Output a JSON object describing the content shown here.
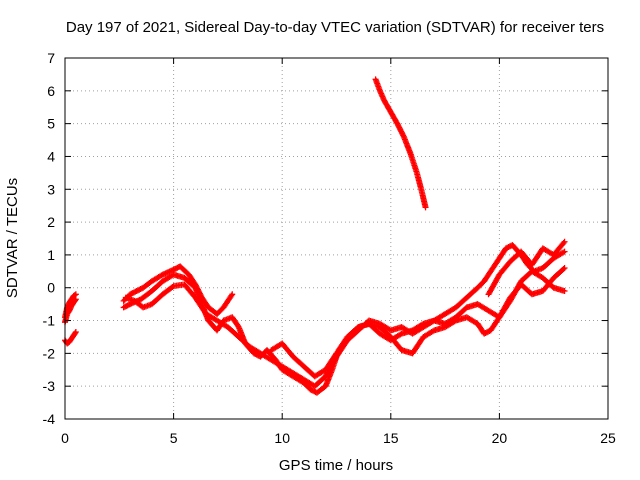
{
  "chart_data": {
    "type": "scatter",
    "title": "Day 197 of 2021, Sidereal Day-to-day VTEC variation (SDTVAR) for receiver ters",
    "xlabel": "GPS time / hours",
    "ylabel": "SDTVAR / TECUs",
    "xlim": [
      0,
      25
    ],
    "ylim": [
      -4,
      7
    ],
    "xticks": [
      "0",
      "5",
      "10",
      "15",
      "20",
      "25"
    ],
    "yticks": [
      "-4",
      "-3",
      "-2",
      "-1",
      "0",
      "1",
      "2",
      "3",
      "4",
      "5",
      "6",
      "7"
    ],
    "grid": true,
    "marker": "+",
    "color": "#ff0000",
    "series": [
      {
        "x": [
          0.0,
          0.1,
          0.2,
          0.3,
          0.4,
          0.5
        ],
        "y": [
          -0.9,
          -0.6,
          -0.45,
          -0.35,
          -0.25,
          -0.2
        ]
      },
      {
        "x": [
          0.0,
          0.1,
          0.2,
          0.3,
          0.4,
          0.5
        ],
        "y": [
          -1.05,
          -0.8,
          -0.7,
          -0.55,
          -0.45,
          -0.35
        ]
      },
      {
        "x": [
          0.0,
          0.1,
          0.2,
          0.3,
          0.4,
          0.5
        ],
        "y": [
          -1.6,
          -1.7,
          -1.65,
          -1.55,
          -1.45,
          -1.35
        ]
      },
      {
        "x": [
          2.7,
          3.0,
          3.3,
          3.6,
          4.0,
          4.5,
          5.0,
          5.3,
          5.7,
          6.0,
          6.3,
          6.6,
          7.0,
          7.3,
          7.7
        ],
        "y": [
          -0.4,
          -0.2,
          -0.1,
          0.0,
          0.2,
          0.4,
          0.55,
          0.65,
          0.4,
          0.1,
          -0.3,
          -0.6,
          -0.8,
          -0.6,
          -0.2
        ]
      },
      {
        "x": [
          2.7,
          3.0,
          3.5,
          4.0,
          4.5,
          5.0,
          5.5,
          6.0,
          6.3,
          6.6,
          7.0,
          7.3,
          7.7,
          8.0,
          8.3,
          8.7,
          9.0,
          9.3,
          9.7,
          10.0,
          10.5,
          11.0,
          11.3,
          11.6,
          12.0,
          12.3,
          12.6,
          13.0,
          13.5,
          14.0,
          14.5,
          15.0,
          15.5,
          16.0,
          16.5,
          17.0,
          17.5,
          18.0,
          18.5,
          19.0,
          19.3,
          19.6,
          20.0,
          20.3,
          20.6,
          21.0,
          21.3,
          21.6,
          22.0,
          22.5,
          23.0
        ],
        "y": [
          -0.6,
          -0.5,
          -0.35,
          -0.1,
          0.2,
          0.4,
          0.3,
          0.0,
          -0.5,
          -1.0,
          -1.3,
          -1.0,
          -0.9,
          -1.2,
          -1.7,
          -2.0,
          -2.1,
          -1.9,
          -2.2,
          -2.5,
          -2.7,
          -2.9,
          -3.1,
          -3.2,
          -3.0,
          -2.5,
          -1.9,
          -1.5,
          -1.2,
          -1.1,
          -1.4,
          -1.6,
          -1.4,
          -1.3,
          -1.1,
          -1.0,
          -0.8,
          -0.6,
          -0.3,
          0.0,
          0.2,
          0.5,
          0.9,
          1.2,
          1.3,
          1.0,
          0.7,
          0.5,
          0.6,
          0.9,
          1.1
        ]
      },
      {
        "x": [
          2.8,
          3.2,
          3.6,
          4.0,
          4.5,
          5.0,
          5.5,
          6.0,
          6.5,
          7.0,
          7.5,
          8.0,
          8.5,
          9.0,
          9.5,
          10.0,
          10.5,
          11.0,
          11.5,
          12.0,
          12.5,
          13.0,
          13.5,
          14.0,
          14.5,
          15.0,
          15.5,
          16.0,
          16.5,
          17.0,
          17.5,
          18.0,
          18.5,
          19.0,
          19.5,
          20.0,
          20.5,
          21.0,
          21.5,
          22.0,
          22.5,
          23.0
        ],
        "y": [
          -0.3,
          -0.4,
          -0.6,
          -0.5,
          -0.2,
          0.05,
          0.1,
          -0.3,
          -0.8,
          -1.0,
          -1.2,
          -1.5,
          -1.8,
          -2.0,
          -2.2,
          -2.4,
          -2.6,
          -2.8,
          -3.0,
          -2.7,
          -2.1,
          -1.6,
          -1.3,
          -1.0,
          -1.1,
          -1.3,
          -1.2,
          -1.4,
          -1.2,
          -1.0,
          -1.1,
          -0.9,
          -0.6,
          -0.5,
          -0.7,
          -0.9,
          -0.4,
          0.2,
          0.5,
          0.3,
          0.0,
          -0.1
        ]
      },
      {
        "x": [
          9.5,
          10.0,
          10.5,
          11.0,
          11.5,
          12.0,
          12.5,
          13.0,
          13.5,
          14.0,
          14.5,
          15.0,
          15.5,
          16.0,
          16.5,
          17.0,
          17.5,
          18.0,
          18.5,
          19.0,
          19.3,
          19.6,
          20.0,
          20.5,
          21.0,
          21.5,
          22.0,
          22.5,
          23.0
        ],
        "y": [
          -1.9,
          -1.7,
          -2.1,
          -2.4,
          -2.7,
          -2.5,
          -2.0,
          -1.6,
          -1.2,
          -1.1,
          -1.2,
          -1.5,
          -1.9,
          -2.0,
          -1.5,
          -1.3,
          -1.2,
          -1.0,
          -0.9,
          -1.1,
          -1.4,
          -1.3,
          -0.9,
          -0.3,
          0.1,
          -0.2,
          -0.1,
          0.3,
          0.6
        ]
      },
      {
        "x": [
          19.5,
          20.0,
          20.5,
          21.0,
          21.5,
          22.0,
          22.5,
          23.0
        ],
        "y": [
          -0.2,
          0.4,
          0.8,
          1.1,
          0.7,
          1.2,
          1.0,
          1.4
        ]
      },
      {
        "x": [
          14.3,
          14.5,
          14.7,
          15.0,
          15.3,
          15.6,
          15.9,
          16.2,
          16.4,
          16.6
        ],
        "y": [
          6.35,
          6.0,
          5.7,
          5.35,
          5.0,
          4.6,
          4.1,
          3.5,
          3.0,
          2.45
        ]
      }
    ]
  }
}
